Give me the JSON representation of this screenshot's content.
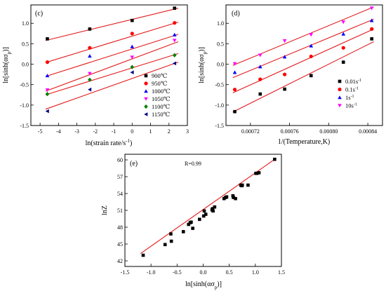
{
  "chart_data": [
    {
      "panel": "c",
      "type": "scatter",
      "panel_label": "(c)",
      "xlabel": "ln(strain rate/s",
      "xlabel_sup": "-1",
      "xlabel_close": ")",
      "ylabel": "ln[sinh(ασ",
      "ylabel_sub": "p",
      "ylabel_close": ")]",
      "xlim": [
        -5.5,
        3
      ],
      "ylim": [
        -1.5,
        1.45
      ],
      "xticks": [
        -5,
        -4,
        -3,
        -2,
        -1,
        0,
        1,
        2,
        3
      ],
      "yticks": [
        -1.5,
        -1.0,
        -0.5,
        0.0,
        0.5,
        1.0
      ],
      "ytick_labels": [
        "-1.5",
        "-1.0",
        "-0.5",
        "0.0",
        "0.5",
        "1.0"
      ],
      "legend": "right",
      "fit_line_color": "#e31a1c",
      "series": [
        {
          "name": "900℃",
          "marker": "square",
          "color": "#000000",
          "x": [
            -4.605,
            -2.303,
            0,
            2.303
          ],
          "y": [
            0.62,
            0.86,
            1.07,
            1.37
          ]
        },
        {
          "name": "950℃",
          "marker": "circle",
          "color": "#ff0000",
          "x": [
            -4.605,
            -2.303,
            0,
            2.303
          ],
          "y": [
            0.05,
            0.4,
            0.75,
            1.01
          ]
        },
        {
          "name": "1000℃",
          "marker": "triangle-up",
          "color": "#0000ff",
          "x": [
            -4.605,
            -2.303,
            0,
            2.303
          ],
          "y": [
            -0.28,
            0.2,
            0.43,
            0.72
          ]
        },
        {
          "name": "1050℃",
          "marker": "triangle-down",
          "color": "#ff00ff",
          "x": [
            -4.605,
            -2.303,
            0,
            2.303
          ],
          "y": [
            -0.63,
            -0.23,
            0.17,
            0.58
          ]
        },
        {
          "name": "1100℃",
          "marker": "diamond",
          "color": "#008000",
          "x": [
            -4.605,
            -2.303,
            0,
            2.303
          ],
          "y": [
            -0.73,
            -0.38,
            -0.07,
            0.22
          ]
        },
        {
          "name": "1150℃",
          "marker": "triangle-left",
          "color": "#000080",
          "x": [
            -4.605,
            -2.303,
            0,
            2.303
          ],
          "y": [
            -1.15,
            -0.62,
            -0.2,
            0.02
          ]
        }
      ],
      "fit_lines": [
        {
          "x": [
            -4.7,
            2.5
          ],
          "y": [
            0.58,
            1.37
          ]
        },
        {
          "x": [
            -4.7,
            2.5
          ],
          "y": [
            0.04,
            1.03
          ]
        },
        {
          "x": [
            -4.7,
            2.5
          ],
          "y": [
            -0.3,
            0.73
          ]
        },
        {
          "x": [
            -4.7,
            2.5
          ],
          "y": [
            -0.66,
            0.55
          ]
        },
        {
          "x": [
            -4.7,
            2.5
          ],
          "y": [
            -0.75,
            0.26
          ]
        },
        {
          "x": [
            -4.7,
            2.5
          ],
          "y": [
            -1.1,
            0.05
          ]
        }
      ]
    },
    {
      "panel": "d",
      "type": "scatter",
      "panel_label": "(d)",
      "xlabel": "1/(Temperature,K)",
      "ylabel": "ln[sinh(ασ",
      "ylabel_sub": "p",
      "ylabel_close": ")]",
      "xlim": [
        0.000695,
        0.000855
      ],
      "ylim": [
        -1.5,
        1.45
      ],
      "xticks": [
        0.00072,
        0.00076,
        0.0008,
        0.00084
      ],
      "xtick_labels": [
        "0.00072",
        "0.00076",
        "0.00080",
        "0.00084"
      ],
      "yticks": [
        -1.5,
        -1.0,
        -0.5,
        0.0,
        0.5,
        1.0
      ],
      "ytick_labels": [
        "-1.5",
        "-1.0",
        "-0.5",
        "0.0",
        "0.5",
        "1.0"
      ],
      "legend": "right",
      "fit_line_color": "#e31a1c",
      "series": [
        {
          "name": "0.01s",
          "name_sup": "-1",
          "marker": "square",
          "color": "#000000",
          "x": [
            0.000704,
            0.00073,
            0.000755,
            0.000782,
            0.000815,
            0.000844
          ],
          "y": [
            -1.16,
            -0.73,
            -0.61,
            -0.28,
            0.05,
            0.62
          ]
        },
        {
          "name": "0.1s",
          "name_sup": "-1",
          "marker": "circle",
          "color": "#ff0000",
          "x": [
            0.000704,
            0.00073,
            0.000755,
            0.000782,
            0.000815,
            0.000844
          ],
          "y": [
            -0.62,
            -0.37,
            -0.25,
            0.19,
            0.4,
            0.86
          ]
        },
        {
          "name": "1s",
          "name_sup": "-1",
          "marker": "triangle-up",
          "color": "#0000ff",
          "x": [
            0.000704,
            0.00073,
            0.000755,
            0.000782,
            0.000815,
            0.000844
          ],
          "y": [
            -0.2,
            -0.06,
            0.18,
            0.45,
            0.74,
            1.07
          ]
        },
        {
          "name": "10s",
          "name_sup": "-1",
          "marker": "triangle-down",
          "color": "#ff00ff",
          "x": [
            0.000704,
            0.00073,
            0.000755,
            0.000782,
            0.000815,
            0.000844
          ],
          "y": [
            0.01,
            0.22,
            0.57,
            0.72,
            1.03,
            1.37
          ]
        }
      ],
      "fit_lines": [
        {
          "x": [
            0.000702,
            0.000846
          ],
          "y": [
            -1.17,
            0.55
          ]
        },
        {
          "x": [
            0.000702,
            0.000846
          ],
          "y": [
            -0.7,
            0.86
          ]
        },
        {
          "x": [
            0.000702,
            0.000846
          ],
          "y": [
            -0.33,
            1.1
          ]
        },
        {
          "x": [
            0.000702,
            0.000846
          ],
          "y": [
            -0.03,
            1.4
          ]
        }
      ]
    },
    {
      "panel": "e",
      "type": "scatter",
      "panel_label": "(e)",
      "annotation": "R=0.99",
      "xlabel": "ln[sinh(ασ",
      "xlabel_sub": "p",
      "xlabel_close": ")]",
      "ylabel": "lnZ",
      "xlim": [
        -1.5,
        1.5
      ],
      "ylim": [
        41,
        61
      ],
      "xticks": [
        -1.5,
        -1.0,
        -0.5,
        0.0,
        0.5,
        1.0,
        1.5
      ],
      "xtick_labels": [
        "-1.5",
        "-1.0",
        "-0.5",
        "0.0",
        "0.5",
        "1.0",
        "1.5"
      ],
      "yticks": [
        42,
        45,
        48,
        51,
        54,
        57,
        60
      ],
      "ytick_labels": [
        "42",
        "45",
        "48",
        "51",
        "54",
        "57",
        "60"
      ],
      "fit_line_color": "#e31a1c",
      "series": [
        {
          "marker": "square",
          "color": "#000000",
          "x": [
            -1.15,
            -0.73,
            -0.62,
            -0.61,
            -0.38,
            -0.28,
            -0.25,
            -0.23,
            -0.2,
            -0.07,
            0.01,
            0.02,
            0.05,
            0.17,
            0.18,
            0.19,
            0.22,
            0.4,
            0.43,
            0.45,
            0.57,
            0.58,
            0.62,
            0.72,
            0.74,
            0.75,
            0.86,
            1.01,
            1.03,
            1.07,
            1.37
          ],
          "y": [
            43.0,
            44.9,
            46.8,
            45.5,
            47.2,
            48.5,
            48.8,
            48.9,
            47.8,
            49.4,
            50.0,
            50.9,
            50.3,
            51.1,
            51.3,
            50.9,
            51.6,
            53.1,
            53.3,
            53.4,
            53.6,
            53.3,
            53.1,
            55.5,
            55.4,
            55.5,
            55.5,
            57.6,
            57.6,
            57.7,
            60.1
          ]
        }
      ],
      "fit_lines": [
        {
          "x": [
            -1.2,
            1.4
          ],
          "y": [
            43.3,
            60.3
          ]
        }
      ]
    }
  ]
}
